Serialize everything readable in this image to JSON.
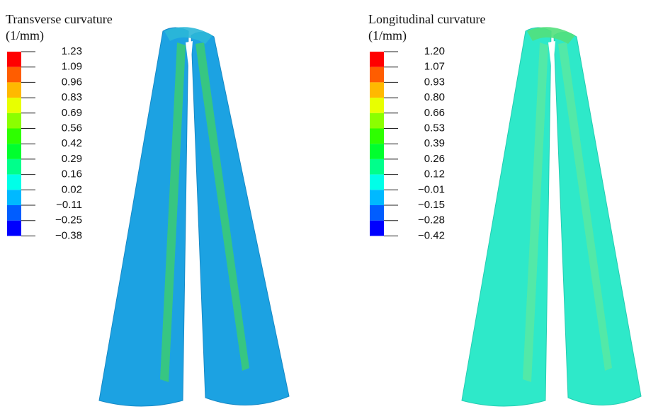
{
  "panels": [
    {
      "title": "Transverse curvature",
      "unit": "(1/mm)",
      "legend": [
        "1.23",
        "1.09",
        "0.96",
        "0.83",
        "0.69",
        "0.56",
        "0.42",
        "0.29",
        "0.16",
        "0.02",
        "−0.11",
        "−0.25",
        "−0.38"
      ]
    },
    {
      "title": "Longitudinal curvature",
      "unit": "(1/mm)",
      "legend": [
        "1.20",
        "1.07",
        "0.93",
        "0.80",
        "0.66",
        "0.53",
        "0.39",
        "0.26",
        "0.12",
        "−0.01",
        "−0.15",
        "−0.28",
        "−0.42"
      ]
    }
  ]
}
